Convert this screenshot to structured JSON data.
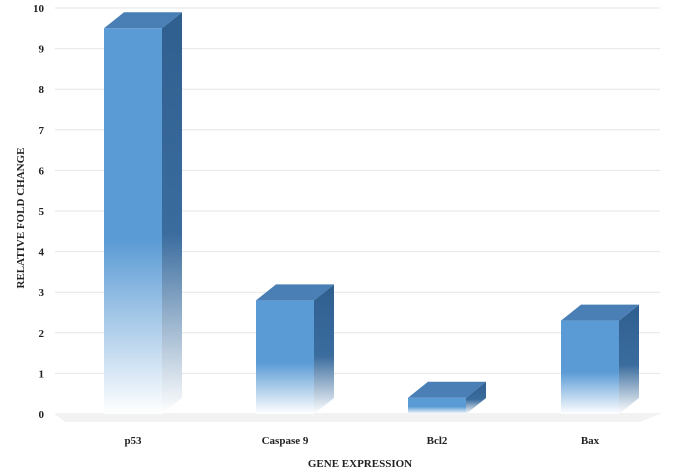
{
  "chart_data": {
    "type": "bar",
    "categories": [
      "p53",
      "Caspase 9",
      "Bcl2",
      "Bax"
    ],
    "values": [
      9.5,
      2.8,
      0.4,
      2.3
    ],
    "xlabel": "GENE EXPRESSION",
    "ylabel": "RELATIVE FOLD CHANGE",
    "ylim": [
      0,
      10
    ],
    "yticks": [
      "0",
      "1",
      "2",
      "3",
      "4",
      "5",
      "6",
      "7",
      "8",
      "9",
      "10"
    ],
    "grid": true,
    "style": "3d",
    "colors": {
      "bar_front": "#5b9bd5",
      "bar_top": "#4a7fb5",
      "bar_side": "#2f5f8f",
      "grid": "#e6e6e6"
    }
  }
}
